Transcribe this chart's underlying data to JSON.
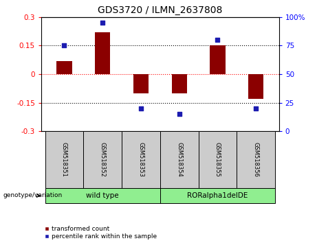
{
  "title": "GDS3720 / ILMN_2637808",
  "samples": [
    "GSM518351",
    "GSM518352",
    "GSM518353",
    "GSM518354",
    "GSM518355",
    "GSM518356"
  ],
  "transformed_count": [
    0.07,
    0.22,
    -0.1,
    -0.1,
    0.15,
    -0.13
  ],
  "percentile_rank": [
    75,
    95,
    20,
    15,
    80,
    20
  ],
  "ylim_left": [
    -0.3,
    0.3
  ],
  "ylim_right": [
    0,
    100
  ],
  "yticks_left": [
    -0.3,
    -0.15,
    0,
    0.15,
    0.3
  ],
  "yticks_right": [
    0,
    25,
    50,
    75,
    100
  ],
  "yticklabels_right": [
    "0",
    "25",
    "50",
    "75",
    "100%"
  ],
  "bar_color": "#8B0000",
  "square_color": "#1C1CB0",
  "groups": [
    {
      "label": "wild type",
      "indices": [
        0,
        1,
        2
      ],
      "color": "#90EE90"
    },
    {
      "label": "RORalpha1delDE",
      "indices": [
        3,
        4,
        5
      ],
      "color": "#90EE90"
    }
  ],
  "group_label_prefix": "genotype/variation",
  "legend_bar_label": "transformed count",
  "legend_sq_label": "percentile rank within the sample",
  "title_fontsize": 10,
  "tick_fontsize": 7.5,
  "bar_width": 0.4
}
